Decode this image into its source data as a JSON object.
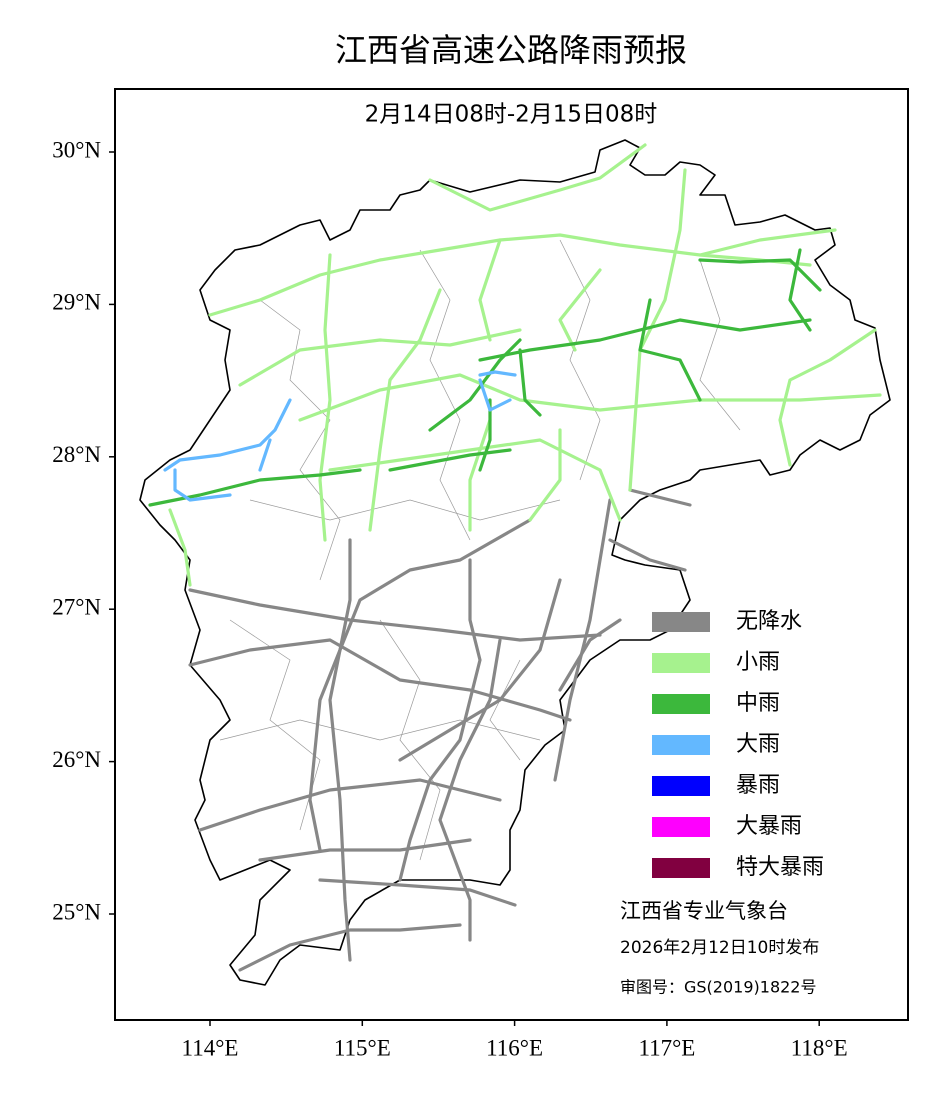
{
  "title": "江西省高速公路降雨预报",
  "subtitle": "2月14日08时-2月15日08时",
  "x_ticks": [
    {
      "value": 114,
      "label": "114°E"
    },
    {
      "value": 115,
      "label": "115°E"
    },
    {
      "value": 116,
      "label": "116°E"
    },
    {
      "value": 117,
      "label": "117°E"
    },
    {
      "value": 118,
      "label": "118°E"
    }
  ],
  "y_ticks": [
    {
      "value": 30,
      "label": "30°N"
    },
    {
      "value": 29,
      "label": "29°N"
    },
    {
      "value": 28,
      "label": "28°N"
    },
    {
      "value": 27,
      "label": "27°N"
    },
    {
      "value": 26,
      "label": "26°N"
    },
    {
      "value": 25,
      "label": "25°N"
    }
  ],
  "legend": [
    {
      "label": "无降水",
      "color": "#878787"
    },
    {
      "label": "小雨",
      "color": "#a6f28e"
    },
    {
      "label": "中雨",
      "color": "#3cb83c"
    },
    {
      "label": "大雨",
      "color": "#63b8ff"
    },
    {
      "label": "暴雨",
      "color": "#0000fe"
    },
    {
      "label": "大暴雨",
      "color": "#fe00fe"
    },
    {
      "label": "特大暴雨",
      "color": "#810040"
    }
  ],
  "footer": [
    "江西省专业气象台",
    "2026年2月12日10时发布",
    "审图号：GS(2019)1822号"
  ]
}
